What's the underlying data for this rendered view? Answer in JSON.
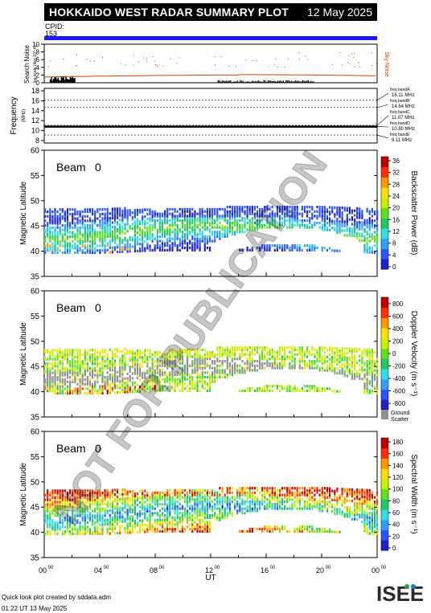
{
  "header": {
    "title": "HOKKAIDO WEST RADAR SUMMARY PLOT",
    "date": "12 May 2025",
    "cpid_label": "CPID:",
    "cpid_value": "153"
  },
  "noise_panel": {
    "ylabel_main": "Search Noise",
    "ylabel_sub": "log scale (dex 10^-4)",
    "right_label": "Sky Noise",
    "yticks": [
      "0",
      "2",
      "4",
      "6",
      "8",
      "10"
    ]
  },
  "freq_panel": {
    "ylabel": "Frequency",
    "ylabel_sub": "(MHz)",
    "yticks": [
      "8",
      "10",
      "12",
      "14",
      "16",
      "18"
    ],
    "bands": [
      {
        "name": "freq bandA",
        "value": "16.11 MHz",
        "freq": 16.11
      },
      {
        "name": "freq bandB",
        "value": "14.64 MHz",
        "freq": 14.64
      },
      {
        "name": "freq bandC",
        "value": "11.07 MHz",
        "freq": 11.07
      },
      {
        "name": "freq bandD",
        "value": "10.80 MHz",
        "freq": 10.8
      },
      {
        "name": "freq bandE",
        "value": "9.11 MHz",
        "freq": 9.11
      }
    ]
  },
  "panels": [
    {
      "beam_label": "Beam",
      "beam_value": "0",
      "ylabel": "Magnetic Latitude",
      "yticks": [
        "35",
        "40",
        "45",
        "50",
        "55",
        "60"
      ],
      "colorbar_label": "Backscatter Power (dB)",
      "colorbar_ticks": [
        "0",
        "4",
        "8",
        "12",
        "16",
        "20",
        "24",
        "28",
        "32",
        "36"
      ],
      "colorbar_colors": [
        "#2020c8",
        "#2b56ff",
        "#2fa0ff",
        "#30e0e0",
        "#20c860",
        "#60e020",
        "#c8f000",
        "#ffe000",
        "#ff9800",
        "#ff3000",
        "#c00000"
      ]
    },
    {
      "beam_label": "Beam",
      "beam_value": "0",
      "ylabel": "Magnetic Latitude",
      "yticks": [
        "35",
        "40",
        "45",
        "50",
        "55",
        "60"
      ],
      "colorbar_label": "Doppler Velocity (m s⁻¹)",
      "colorbar_ticks": [
        "800",
        "600",
        "400",
        "200",
        "0",
        "-200",
        "-400",
        "-600",
        "-800"
      ],
      "colorbar_colors": [
        "#2020c8",
        "#2b56ff",
        "#2fa0ff",
        "#30e0e0",
        "#20c860",
        "#60e020",
        "#c8f000",
        "#ffe000",
        "#ff9800",
        "#ff3000",
        "#c00000"
      ],
      "ground_label_1": "Ground",
      "ground_label_2": "Scatter"
    },
    {
      "beam_label": "Beam",
      "beam_value": "0",
      "ylabel": "Magnetic Latitude",
      "yticks": [
        "35",
        "40",
        "45",
        "50",
        "55",
        "60"
      ],
      "colorbar_label": "Spectral Width (m s⁻¹)",
      "colorbar_ticks": [
        "0",
        "20",
        "40",
        "60",
        "80",
        "100",
        "120",
        "140",
        "160",
        "180"
      ],
      "colorbar_colors": [
        "#2020c8",
        "#2b56ff",
        "#2fa0ff",
        "#30e0e0",
        "#20c860",
        "#60e020",
        "#c8f000",
        "#ffe000",
        "#ff9800",
        "#ff3000",
        "#c00000"
      ]
    }
  ],
  "xaxis": {
    "label": "UT",
    "ticks": [
      "00",
      "04",
      "08",
      "12",
      "16",
      "20",
      "00"
    ],
    "tick_sup": "00"
  },
  "watermark": "NOT FOR PUBLICATION",
  "footer": {
    "line1": "Quick look plot created by sddata.adm",
    "line2": "01:22 UT 13 May 2025"
  },
  "logo_text": "ISEE",
  "chart_data": {
    "type": "heatmap",
    "title": "HOKKAIDO WEST RADAR SUMMARY PLOT",
    "xlabel": "UT",
    "ylabel": "Magnetic Latitude",
    "xlim": [
      0,
      24
    ],
    "ylim": [
      35,
      60
    ],
    "x_ticks": [
      0,
      4,
      8,
      12,
      16,
      20,
      24
    ],
    "scatter_band": [
      {
        "ut": 0,
        "lat_min": 39.5,
        "lat_max": 48.5
      },
      {
        "ut": 4,
        "lat_min": 39.5,
        "lat_max": 48.5
      },
      {
        "ut": 8,
        "lat_min": 40,
        "lat_max": 48
      },
      {
        "ut": 12,
        "lat_min": 40,
        "lat_max": 48.5
      },
      {
        "ut": 16,
        "lat_min": 40,
        "lat_max": 49
      },
      {
        "ut": 20,
        "lat_min": 40,
        "lat_max": 49
      },
      {
        "ut": 24,
        "lat_min": 39.5,
        "lat_max": 48
      }
    ],
    "power_range_db": [
      0,
      36
    ],
    "velocity_range": [
      -800,
      800
    ],
    "width_range": [
      0,
      180
    ]
  }
}
